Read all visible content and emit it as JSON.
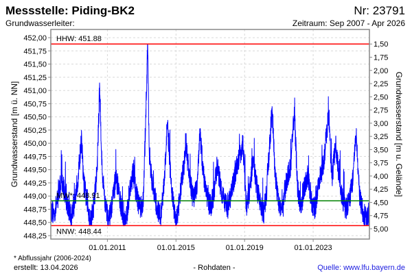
{
  "header": {
    "title": "Messstelle: Piding-BK2",
    "number": "Nr: 23791",
    "aquifer": "Grundwasserleiter:",
    "period": "Zeitraum: Sep 2007 - Apr 2026"
  },
  "footer": {
    "note": "* Abflussjahr (2006-2024)",
    "created": "erstellt:  13.04.2026",
    "datatype": "- Rohdaten -",
    "source": "Quelle: www.lfu.bayern.de"
  },
  "colors": {
    "series": "#0000ff",
    "hhw_nnw": "#ff0000",
    "mw": "#008000"
  },
  "chart_data": {
    "type": "line",
    "ylabel": "Grundwasserstand [m ü. NN]",
    "ylabel_right": "Grundwasserstand [m u. Gelände]",
    "ylim": [
      448.25,
      452.0
    ],
    "xlim": [
      2007.7,
      2026.28
    ],
    "ground_level": 453.38,
    "yticks": [
      "448,25",
      "448,50",
      "448,75",
      "449,00",
      "449,25",
      "449,50",
      "449,75",
      "450,00",
      "450,25",
      "450,50",
      "450,75",
      "451,00",
      "451,25",
      "451,50",
      "451,75",
      "452,00"
    ],
    "ytick_values": [
      448.25,
      448.5,
      448.75,
      449.0,
      449.25,
      449.5,
      449.75,
      450.0,
      450.25,
      450.5,
      450.75,
      451.0,
      451.25,
      451.5,
      451.75,
      452.0
    ],
    "yticks_right": [
      "1,50",
      "1,75",
      "2,00",
      "2,25",
      "2,50",
      "2,75",
      "3,00",
      "3,25",
      "3,50",
      "3,75",
      "4,00",
      "4,25",
      "4,50",
      "4,75",
      "5,00"
    ],
    "ytick_right_values": [
      1.5,
      1.75,
      2.0,
      2.25,
      2.5,
      2.75,
      3.0,
      3.25,
      3.5,
      3.75,
      4.0,
      4.25,
      4.5,
      4.75,
      5.0
    ],
    "xticks": [
      "01.01.2011",
      "01.01.2015",
      "01.01.2019",
      "01.01.2023"
    ],
    "xtick_values": [
      2011.0,
      2015.0,
      2019.0,
      2023.0
    ],
    "reference_lines": [
      {
        "name": "HHW",
        "label": "HHW: 451.88",
        "value": 451.88
      },
      {
        "name": "MW",
        "label": "MW*: 448.91",
        "value": 448.91
      },
      {
        "name": "NNW",
        "label": "NNW: 448.44",
        "value": 448.44
      }
    ],
    "series": [
      {
        "name": "Grundwasserstand",
        "points": [
          [
            2007.7,
            448.75
          ],
          [
            2007.9,
            448.65
          ],
          [
            2008.1,
            448.95
          ],
          [
            2008.3,
            449.3
          ],
          [
            2008.5,
            449.1
          ],
          [
            2008.7,
            448.8
          ],
          [
            2008.9,
            448.6
          ],
          [
            2009.1,
            448.9
          ],
          [
            2009.3,
            449.4
          ],
          [
            2009.5,
            450.1
          ],
          [
            2009.6,
            449.3
          ],
          [
            2009.8,
            448.9
          ],
          [
            2010.0,
            448.55
          ],
          [
            2010.2,
            448.8
          ],
          [
            2010.4,
            449.5
          ],
          [
            2010.55,
            451.05
          ],
          [
            2010.7,
            449.4
          ],
          [
            2010.9,
            448.8
          ],
          [
            2011.1,
            448.55
          ],
          [
            2011.3,
            448.9
          ],
          [
            2011.5,
            449.35
          ],
          [
            2011.7,
            449.0
          ],
          [
            2011.9,
            448.6
          ],
          [
            2012.1,
            448.55
          ],
          [
            2012.3,
            449.1
          ],
          [
            2012.5,
            449.45
          ],
          [
            2012.7,
            449.0
          ],
          [
            2012.9,
            448.75
          ],
          [
            2013.1,
            448.9
          ],
          [
            2013.35,
            451.88
          ],
          [
            2013.45,
            449.6
          ],
          [
            2013.7,
            449.1
          ],
          [
            2013.9,
            448.75
          ],
          [
            2014.1,
            448.6
          ],
          [
            2014.3,
            449.2
          ],
          [
            2014.5,
            450.4
          ],
          [
            2014.7,
            449.3
          ],
          [
            2014.9,
            448.7
          ],
          [
            2015.0,
            448.48
          ],
          [
            2015.2,
            448.9
          ],
          [
            2015.4,
            449.45
          ],
          [
            2015.6,
            449.9
          ],
          [
            2015.8,
            449.3
          ],
          [
            2016.0,
            448.95
          ],
          [
            2016.2,
            449.1
          ],
          [
            2016.4,
            450.2
          ],
          [
            2016.6,
            449.4
          ],
          [
            2016.8,
            449.0
          ],
          [
            2017.0,
            448.8
          ],
          [
            2017.2,
            449.0
          ],
          [
            2017.4,
            449.6
          ],
          [
            2017.6,
            449.2
          ],
          [
            2017.8,
            448.9
          ],
          [
            2018.0,
            448.75
          ],
          [
            2018.2,
            449.0
          ],
          [
            2018.5,
            449.5
          ],
          [
            2018.9,
            450.0
          ],
          [
            2019.1,
            448.8
          ],
          [
            2019.3,
            449.1
          ],
          [
            2019.5,
            449.7
          ],
          [
            2019.7,
            449.2
          ],
          [
            2019.9,
            448.85
          ],
          [
            2020.1,
            448.65
          ],
          [
            2020.3,
            449.1
          ],
          [
            2020.6,
            450.7
          ],
          [
            2020.8,
            449.3
          ],
          [
            2021.0,
            448.9
          ],
          [
            2021.2,
            448.7
          ],
          [
            2021.4,
            449.2
          ],
          [
            2021.7,
            449.6
          ],
          [
            2021.9,
            450.6
          ],
          [
            2022.1,
            449.1
          ],
          [
            2022.3,
            448.8
          ],
          [
            2022.5,
            449.2
          ],
          [
            2022.7,
            449.4
          ],
          [
            2022.9,
            448.9
          ],
          [
            2023.1,
            448.75
          ],
          [
            2023.3,
            449.2
          ],
          [
            2023.6,
            449.6
          ],
          [
            2023.9,
            450.55
          ],
          [
            2024.1,
            449.3
          ],
          [
            2024.3,
            450.0
          ],
          [
            2024.5,
            449.4
          ],
          [
            2024.7,
            448.95
          ],
          [
            2024.9,
            448.75
          ],
          [
            2025.1,
            448.9
          ],
          [
            2025.3,
            449.3
          ],
          [
            2025.5,
            450.15
          ],
          [
            2025.7,
            449.0
          ],
          [
            2025.9,
            448.7
          ],
          [
            2026.1,
            448.55
          ],
          [
            2026.28,
            448.7
          ]
        ]
      }
    ]
  }
}
